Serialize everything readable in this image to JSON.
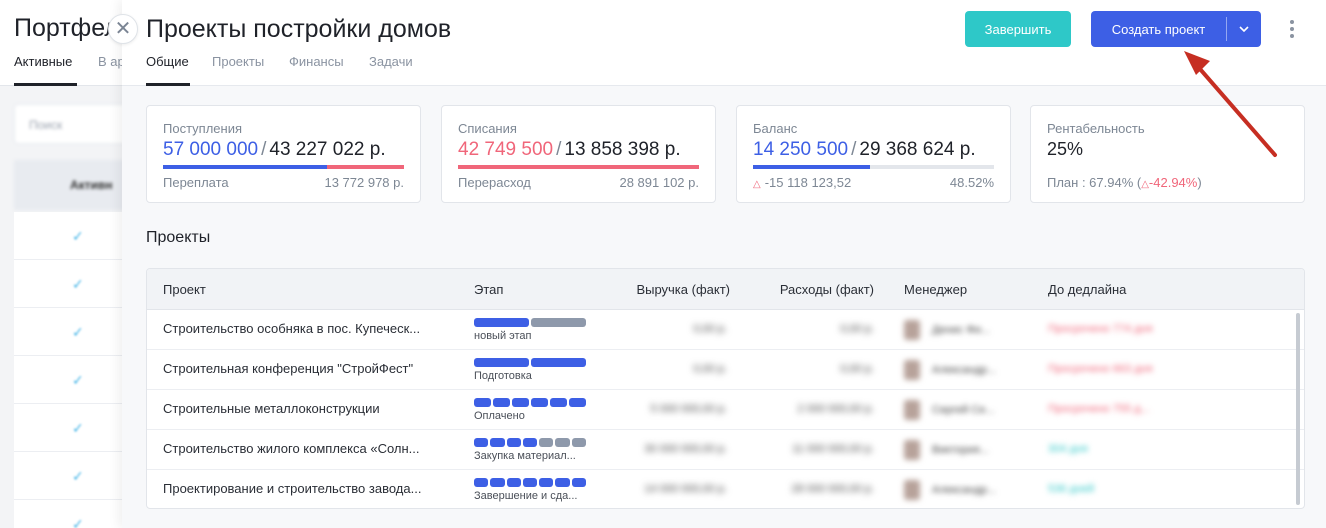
{
  "background": {
    "title": "Портфел",
    "tabs": [
      "Активные",
      "В ар"
    ],
    "search_placeholder": "Поиск",
    "table_header": "Активн"
  },
  "drawer": {
    "title": "Проекты постройки домов",
    "tabs": [
      "Общие",
      "Проекты",
      "Финансы",
      "Задачи"
    ],
    "finish_label": "Завершить",
    "create_label": "Создать проект"
  },
  "kpi": [
    {
      "title": "Поступления",
      "value": "57 000 000",
      "total": "43 227 022 р.",
      "foot_left": "Переплата",
      "foot_right": "13 772 978 р."
    },
    {
      "title": "Списания",
      "value": "42 749 500",
      "total": "13 858 398 р.",
      "foot_left": "Перерасход",
      "foot_right": "28 891 102 р."
    },
    {
      "title": "Баланс",
      "value": "14 250 500",
      "total": "29 368 624 р.",
      "foot_left": "-15 118 123,52",
      "foot_right": "48.52%",
      "fill": 0.4852
    },
    {
      "title": "Рентабельность",
      "value": "25%",
      "foot_prefix": "План : 67.94% (",
      "foot_neg": "-42.94%",
      "foot_suffix": ")"
    }
  ],
  "projects": {
    "section_title": "Проекты",
    "columns": [
      "Проект",
      "Этап",
      "Выручка (факт)",
      "Расходы (факт)",
      "Менеджер",
      "До дедлайна"
    ],
    "rows": [
      {
        "name": "Строительство особняка в пос. Купеческ...",
        "stage": "новый этап",
        "segments": 2,
        "filled": 1,
        "revenue": "0,00 р.",
        "expenses": "0,00 р.",
        "manager": "Денис Фи...",
        "deadline": "Просрочено 774 дня"
      },
      {
        "name": "Строительная конференция \"СтройФест\"",
        "stage": "Подготовка",
        "segments": 2,
        "filled": 2,
        "revenue": "0,00 р.",
        "expenses": "0,00 р.",
        "manager": "Александр...",
        "deadline": "Просрочено 663 дня"
      },
      {
        "name": "Строительные металлоконструкции",
        "stage": "Оплачено",
        "segments": 6,
        "filled": 6,
        "revenue": "5 000 000,00 р.",
        "expenses": "2 000 000,00 р.",
        "manager": "Сергей Се...",
        "deadline": "Просрочено 755 д..."
      },
      {
        "name": "Строительство жилого комплекса «Солн...",
        "stage": "Закупка материал...",
        "segments": 7,
        "filled": 4,
        "revenue": "30 000 000,00 р.",
        "expenses": "11 000 000,00 р.",
        "manager": "Виктория...",
        "deadline": "304 дня"
      },
      {
        "name": "Проектирование и строительство завода...",
        "stage": "Завершение и сда...",
        "segments": 7,
        "filled": 7,
        "revenue": "14 000 000,00 р.",
        "expenses": "28 000 000,00 р.",
        "manager": "Александр...",
        "deadline": "536 дней"
      }
    ]
  },
  "colors": {
    "primary": "#3d5fe5",
    "teal": "#2ec8c8",
    "negative": "#f0667a",
    "arrow": "#c62e22"
  }
}
